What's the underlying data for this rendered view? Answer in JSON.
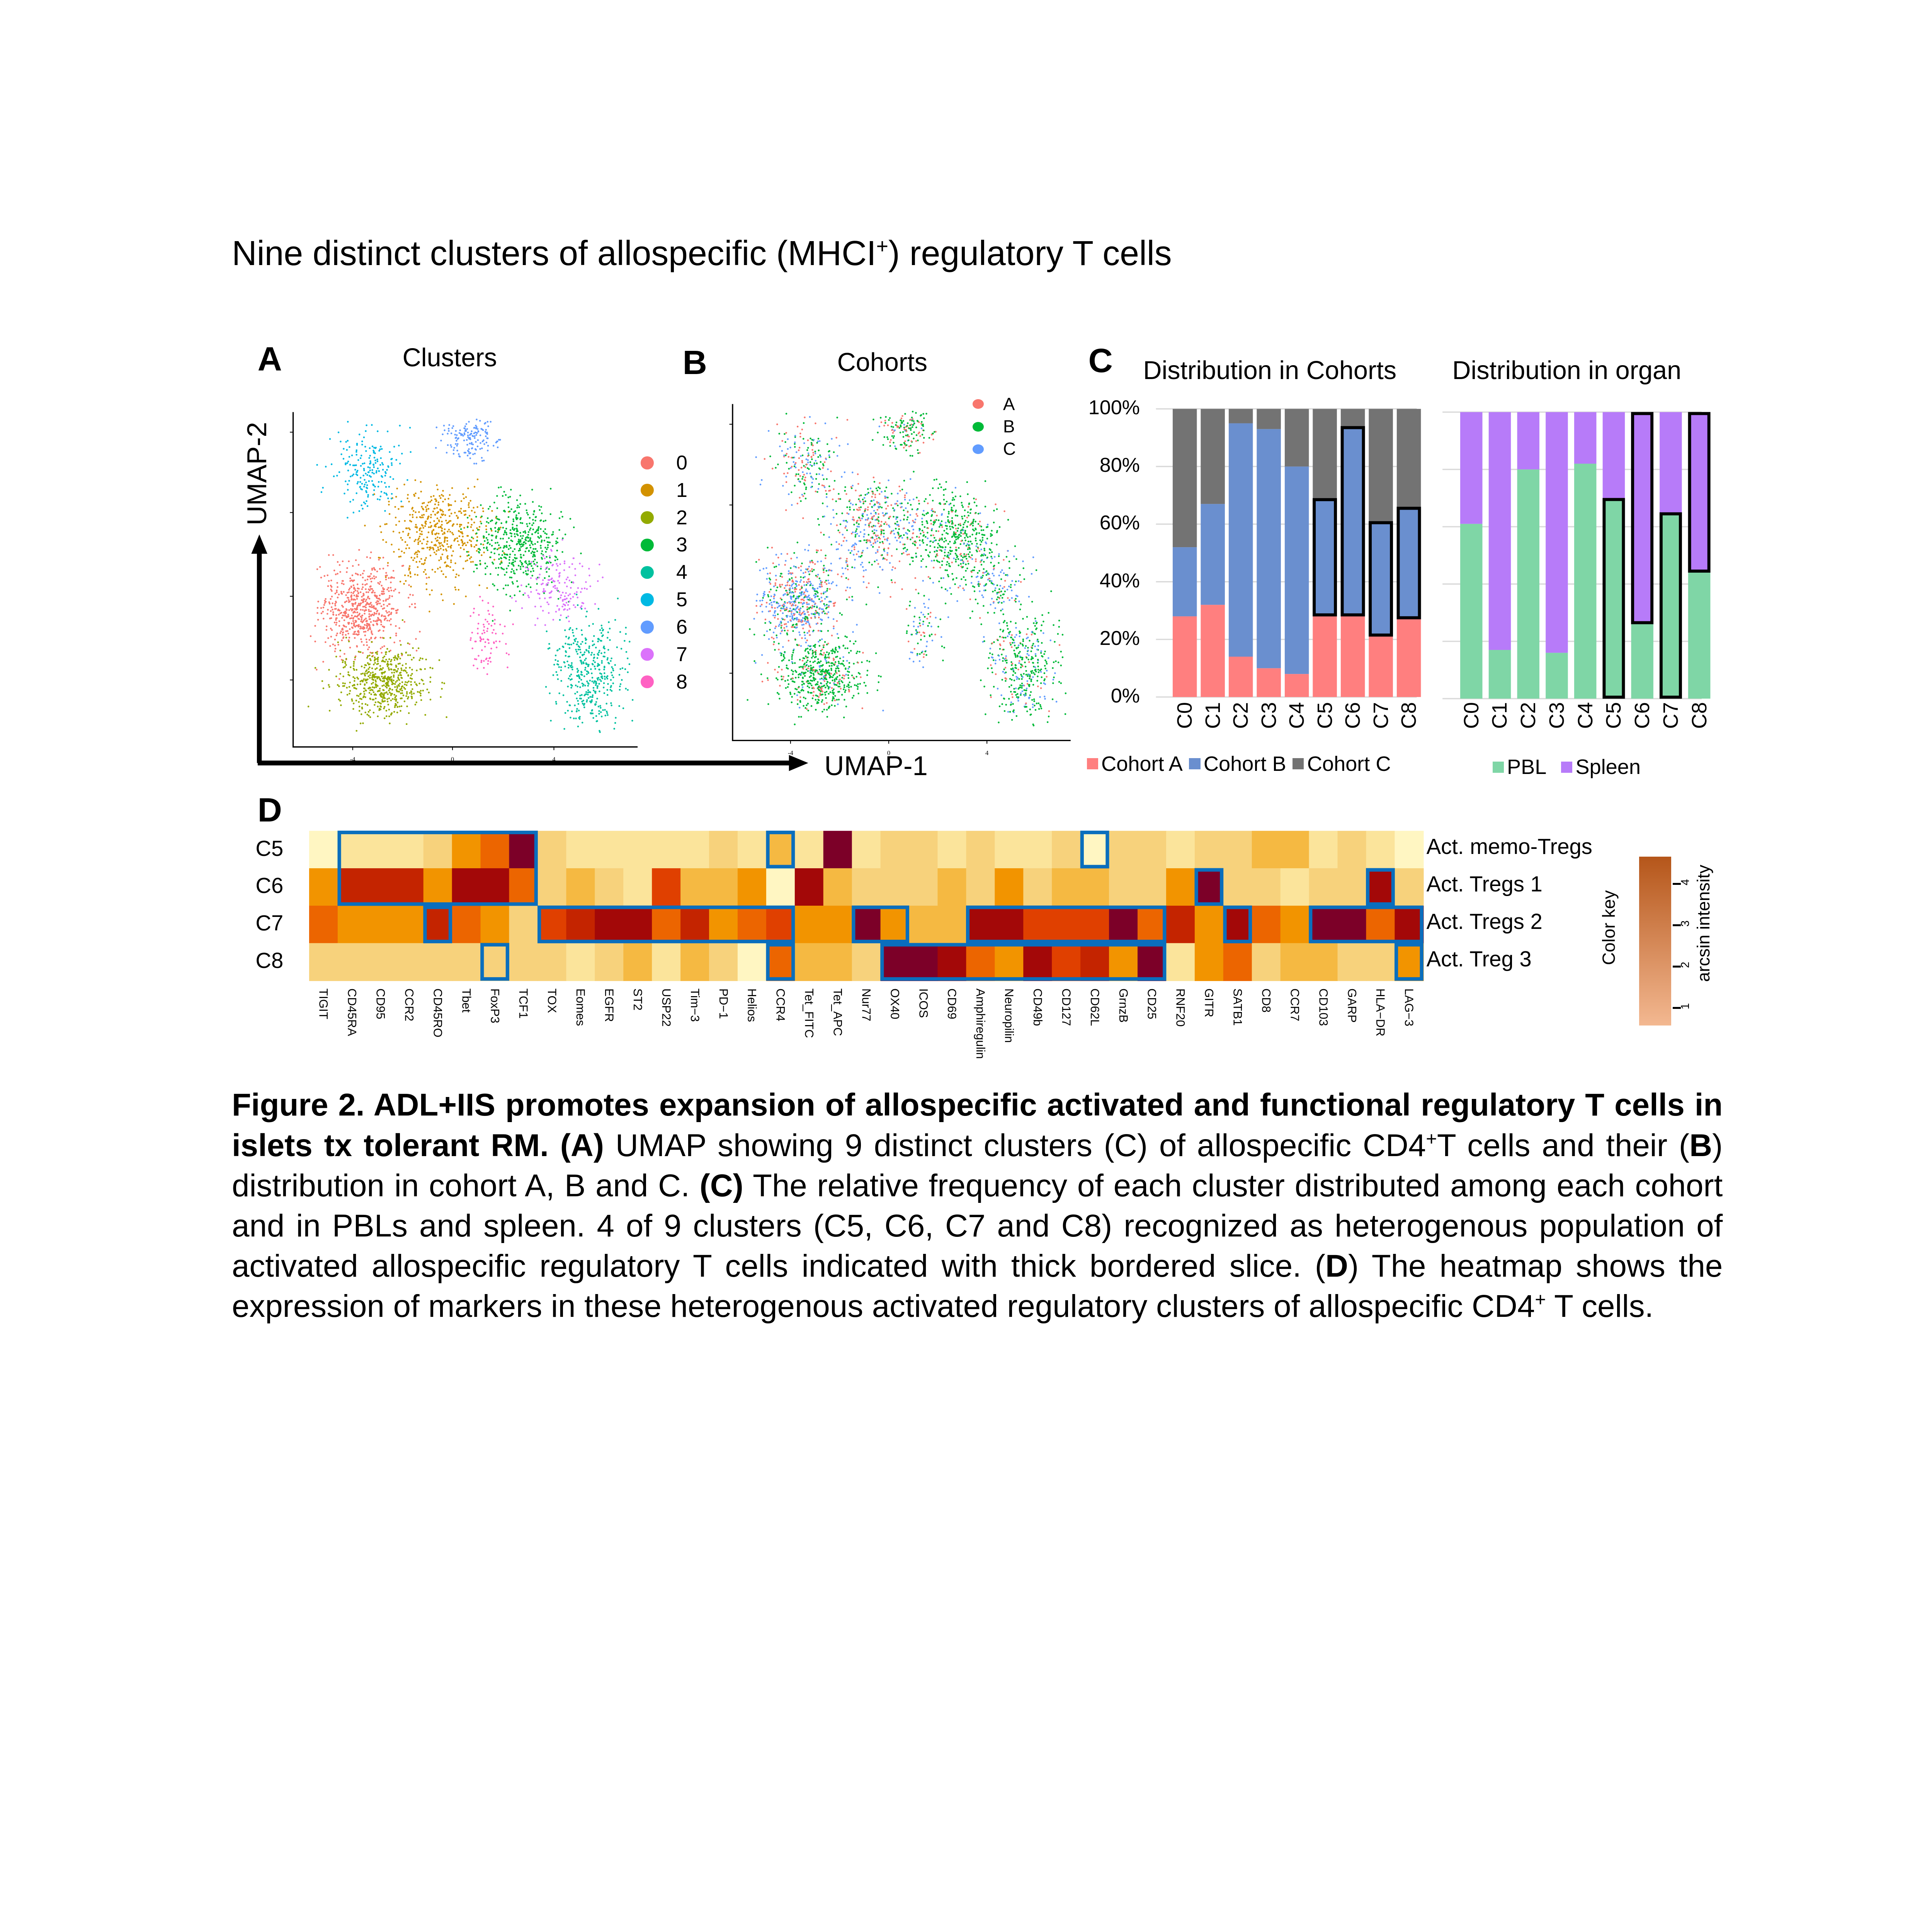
{
  "title_parts": [
    {
      "t": "Nine distinct clusters of allospecific (MHCI"
    },
    {
      "t": "+",
      "sup": true
    },
    {
      "t": ") regulatory T cells"
    }
  ],
  "panels": {
    "a": "A",
    "b": "B",
    "c": "C",
    "d": "D"
  },
  "umap": {
    "xlabel": "UMAP-1",
    "ylabel": "UMAP-2",
    "xticks": [
      "-4",
      "0",
      "4"
    ],
    "clusters_title": "Clusters",
    "cohorts_title": "Cohorts",
    "cluster_colors": [
      "#f8766d",
      "#d39200",
      "#93aa00",
      "#00ba38",
      "#00c19f",
      "#00b9e3",
      "#619cff",
      "#db72fb",
      "#ff61c3"
    ],
    "cluster_labels": [
      "0",
      "1",
      "2",
      "3",
      "4",
      "5",
      "6",
      "7",
      "8"
    ],
    "cohort_labels": [
      "A",
      "B",
      "C"
    ],
    "cohort_colors": [
      "#f8766d",
      "#00ba38",
      "#619cff"
    ]
  },
  "chart_data": [
    {
      "type": "scatter",
      "title": "Clusters",
      "xlabel": "UMAP-1",
      "ylabel": "UMAP-2",
      "xlim": [
        -6.4,
        7.4
      ],
      "ylim": [
        -7.2,
        8.3
      ],
      "clusters": [
        {
          "name": "0",
          "center": [
            -3.7,
            -0.8
          ],
          "spread": [
            1.1,
            1.3
          ],
          "n": 620
        },
        {
          "name": "1",
          "center": [
            -0.6,
            2.6
          ],
          "spread": [
            1.3,
            1.5
          ],
          "n": 480
        },
        {
          "name": "2",
          "center": [
            -2.8,
            -4.2
          ],
          "spread": [
            1.2,
            1.0
          ],
          "n": 560
        },
        {
          "name": "3",
          "center": [
            2.6,
            2.2
          ],
          "spread": [
            1.2,
            1.4
          ],
          "n": 460
        },
        {
          "name": "4",
          "center": [
            5.5,
            -3.8
          ],
          "spread": [
            1.0,
            1.7
          ],
          "n": 420
        },
        {
          "name": "5",
          "center": [
            -3.4,
            5.5
          ],
          "spread": [
            0.9,
            1.3
          ],
          "n": 200
        },
        {
          "name": "6",
          "center": [
            0.6,
            7.0
          ],
          "spread": [
            0.8,
            0.6
          ],
          "n": 150
        },
        {
          "name": "7",
          "center": [
            4.2,
            0.2
          ],
          "spread": [
            0.9,
            1.0
          ],
          "n": 160
        },
        {
          "name": "8",
          "center": [
            1.4,
            -2.2
          ],
          "spread": [
            0.5,
            1.1
          ],
          "n": 80
        }
      ]
    },
    {
      "type": "bar",
      "stacked": true,
      "title": "Distribution in Cohorts",
      "categories": [
        "C0",
        "C1",
        "C2",
        "C3",
        "C4",
        "C5",
        "C6",
        "C7",
        "C8"
      ],
      "ylim": [
        0,
        100
      ],
      "yticks": [
        "0%",
        "20%",
        "40%",
        "60%",
        "80%",
        "100%"
      ],
      "series": [
        {
          "name": "Cohort A",
          "color": "#ff7f7f",
          "values": [
            28,
            32,
            14,
            10,
            8,
            28,
            28,
            21,
            27
          ]
        },
        {
          "name": "Cohort B",
          "color": "#6a8fcf",
          "values": [
            24,
            35,
            81,
            83,
            72,
            41,
            66,
            40,
            39
          ]
        },
        {
          "name": "Cohort C",
          "color": "#737373",
          "values": [
            48,
            33,
            5,
            7,
            20,
            31,
            6,
            39,
            34
          ]
        }
      ],
      "highlighted": [
        {
          "category": "C5",
          "series": "Cohort B"
        },
        {
          "category": "C6",
          "series": "Cohort B"
        },
        {
          "category": "C7",
          "series": "Cohort B"
        },
        {
          "category": "C8",
          "series": "Cohort B"
        }
      ],
      "legend": "bottom"
    },
    {
      "type": "bar",
      "stacked": true,
      "title": "Distribution in organ",
      "categories": [
        "C0",
        "C1",
        "C2",
        "C3",
        "C4",
        "C5",
        "C6",
        "C7",
        "C8"
      ],
      "ylim": [
        0,
        100
      ],
      "series": [
        {
          "name": "PBL",
          "color": "#7fd6a6",
          "values": [
            61,
            17,
            80,
            16,
            82,
            70,
            26,
            65,
            44
          ]
        },
        {
          "name": "Spleen",
          "color": "#b77bf9",
          "values": [
            39,
            83,
            20,
            84,
            18,
            30,
            74,
            35,
            56
          ]
        }
      ],
      "highlighted": [
        {
          "category": "C5",
          "series": "PBL"
        },
        {
          "category": "C6",
          "series": "Spleen"
        },
        {
          "category": "C7",
          "series": "PBL"
        },
        {
          "category": "C8",
          "series": "Spleen"
        }
      ],
      "legend": "bottom"
    },
    {
      "type": "heatmap",
      "rows": [
        "C5",
        "C6",
        "C7",
        "C8"
      ],
      "row_annotations": [
        "Act. memo-Tregs",
        "Act. Tregs 1",
        "Act. Tregs 2",
        "Act. Treg 3"
      ],
      "columns": [
        "TIGIT",
        "CD45RA",
        "CD95",
        "CCR2",
        "CD45RO",
        "Tbet",
        "FoxP3",
        "TCF1",
        "TOX",
        "Eomes",
        "EGFR",
        "ST2",
        "USP22",
        "Tim−3",
        "PD−1",
        "Helios",
        "CCR4",
        "Tet_FITC",
        "Tet_APC",
        "Nur77",
        "OX40",
        "ICOS",
        "CD69",
        "Amphiregulin",
        "Neuropilin",
        "CD49b",
        "CD127",
        "CD62L",
        "GrnzB",
        "CD25",
        "RNF20",
        "GITR",
        "SATB1",
        "CD8",
        "CCR7",
        "CD103",
        "GARP",
        "HLA−DR",
        "LAG−3"
      ],
      "level_scale": "0 (lowest) to 9 (highest)",
      "values": [
        [
          0,
          1,
          1,
          1,
          2,
          4,
          5,
          9,
          2,
          1,
          1,
          1,
          1,
          1,
          2,
          1,
          3,
          1,
          9,
          1,
          2,
          2,
          1,
          2,
          1,
          1,
          2,
          0,
          2,
          2,
          1,
          2,
          2,
          3,
          3,
          1,
          2,
          1,
          0
        ],
        [
          4,
          7,
          7,
          7,
          4,
          8,
          8,
          5,
          2,
          3,
          2,
          1,
          6,
          3,
          3,
          4,
          0,
          8,
          3,
          2,
          2,
          2,
          3,
          2,
          4,
          2,
          3,
          3,
          2,
          2,
          4,
          9,
          2,
          2,
          1,
          2,
          2,
          8,
          2
        ],
        [
          5,
          4,
          4,
          4,
          7,
          5,
          4,
          2,
          6,
          7,
          8,
          8,
          5,
          7,
          4,
          5,
          6,
          4,
          4,
          9,
          4,
          3,
          3,
          8,
          8,
          6,
          6,
          6,
          9,
          5,
          7,
          4,
          8,
          5,
          4,
          9,
          9,
          5,
          8
        ],
        [
          2,
          2,
          2,
          2,
          2,
          2,
          2,
          2,
          2,
          1,
          2,
          3,
          1,
          3,
          2,
          0,
          5,
          3,
          3,
          2,
          9,
          9,
          8,
          5,
          4,
          8,
          6,
          7,
          4,
          9,
          1,
          4,
          5,
          2,
          3,
          3,
          2,
          2,
          4
        ]
      ],
      "palette": [
        "#fff6c2",
        "#fbe49b",
        "#f7d27c",
        "#f5b942",
        "#f29400",
        "#ec6500",
        "#e04000",
        "#c42400",
        "#a30808",
        "#7c0028"
      ],
      "highlight_color": "#0a6ebd",
      "highlights": [
        {
          "rows": [
            "C5",
            "C6"
          ],
          "cols": [
            "CD45RA",
            "TCF1"
          ]
        },
        {
          "rows": [
            "C5",
            "C5"
          ],
          "cols": [
            "CCR4",
            "CCR4"
          ]
        },
        {
          "rows": [
            "C7",
            "C7"
          ],
          "cols": [
            "CD45RO",
            "CD45RO"
          ]
        },
        {
          "rows": [
            "C8",
            "C8"
          ],
          "cols": [
            "FoxP3",
            "FoxP3"
          ]
        },
        {
          "rows": [
            "C7",
            "C7"
          ],
          "cols": [
            "TOX",
            "CCR4"
          ]
        },
        {
          "rows": [
            "C8",
            "C8"
          ],
          "cols": [
            "CCR4",
            "CCR4"
          ]
        },
        {
          "rows": [
            "C7",
            "C7"
          ],
          "cols": [
            "Nur77",
            "OX40"
          ]
        },
        {
          "rows": [
            "C8",
            "C8"
          ],
          "cols": [
            "OX40",
            "CD25"
          ]
        },
        {
          "rows": [
            "C7",
            "C7"
          ],
          "cols": [
            "Amphiregulin",
            "CD25"
          ]
        },
        {
          "rows": [
            "C5",
            "C5"
          ],
          "cols": [
            "CD62L",
            "CD62L"
          ]
        },
        {
          "rows": [
            "C6",
            "C6"
          ],
          "cols": [
            "GITR",
            "GITR"
          ]
        },
        {
          "rows": [
            "C7",
            "C7"
          ],
          "cols": [
            "SATB1",
            "SATB1"
          ]
        },
        {
          "rows": [
            "C6",
            "C6"
          ],
          "cols": [
            "HLA−DR",
            "HLA−DR"
          ]
        },
        {
          "rows": [
            "C7",
            "C7"
          ],
          "cols": [
            "CD103",
            "LAG−3"
          ]
        },
        {
          "rows": [
            "C8",
            "C8"
          ],
          "cols": [
            "LAG−3",
            "LAG−3"
          ]
        }
      ],
      "color_key": {
        "title": "Color key",
        "label": "arcsin intensity",
        "ticks": [
          "1",
          "2",
          "3",
          "4"
        ],
        "range": [
          0.6,
          4.5
        ],
        "colors": [
          "#f3b891",
          "#b5561a"
        ]
      }
    }
  ],
  "caption": [
    {
      "t": "Figure 2. ADL+IIS promotes expansion of allospecific activated and functional regulatory T cells in islets tx tolerant RM. ",
      "b": true
    },
    {
      "t": "(A)",
      "b": true
    },
    {
      "t": " UMAP showing 9 distinct clusters (C) of allospecific CD4"
    },
    {
      "t": "+",
      "sup": true
    },
    {
      "t": "T cells and their ("
    },
    {
      "t": "B",
      "b": true
    },
    {
      "t": ") distribution in cohort A, B and C. "
    },
    {
      "t": "(C)",
      "b": true
    },
    {
      "t": " The relative frequency of each cluster distributed among each cohort and in PBLs and spleen. 4 of 9 clusters (C5, C6, C7 and C8) recognized as heterogenous population of activated allospecific regulatory T cells indicated with thick bordered slice. ("
    },
    {
      "t": "D",
      "b": true
    },
    {
      "t": ") The heatmap shows the expression of markers in these heterogenous activated regulatory clusters of allospecific CD4"
    },
    {
      "t": "+",
      "sup": true
    },
    {
      "t": " T cells."
    }
  ]
}
